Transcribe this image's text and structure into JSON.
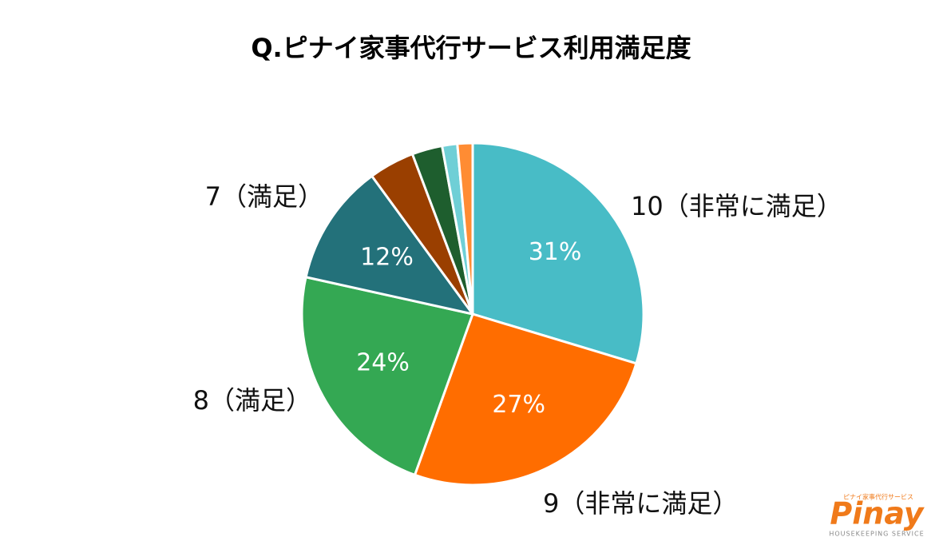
{
  "chart_data": {
    "type": "pie",
    "title": "Q.ピナイ家事代行サービス利用満足度",
    "categories": [
      "10（非常に満足）",
      "9（非常に満足）",
      "8（満足）",
      "7（満足）",
      null,
      null,
      null,
      null
    ],
    "values": [
      31,
      27,
      24,
      12,
      4.5,
      3,
      1.5,
      1.5
    ],
    "value_labels": [
      "31%",
      "27%",
      "24%",
      "12%",
      null,
      null,
      null,
      null
    ],
    "colors": [
      "#48bcc6",
      "#ff6d00",
      "#34a853",
      "#23717a",
      "#9a3f00",
      "#1e5e2e",
      "#6fcfd6",
      "#ff8c33"
    ]
  },
  "logo": {
    "tagline": "ピナイ家事代行サービス",
    "name": "Pinay",
    "subtitle": "HOUSEKEEPING SERVICE"
  }
}
